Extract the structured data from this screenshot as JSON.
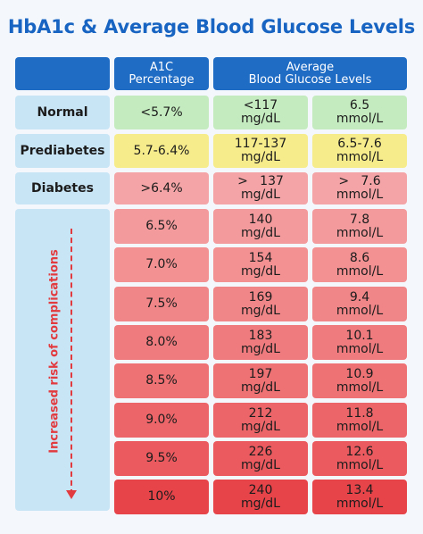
{
  "title": "HbA1c & Average Blood Glucose Levels",
  "headers": {
    "a1c_line1": "A1C",
    "a1c_line2": "Percentage",
    "avg_line1": "Average",
    "avg_line2": "Blood Glucose Levels"
  },
  "categories": [
    {
      "label": "Normal",
      "a1c": "<5.7%",
      "mgdl": "<117",
      "mgdl_unit": "mg/dL",
      "mmol": "6.5",
      "mmol_unit": "mmol/L"
    },
    {
      "label": "Prediabetes",
      "a1c": "5.7-6.4%",
      "mgdl": "117-137",
      "mgdl_unit": "mg/dL",
      "mmol": "6.5-7.6",
      "mmol_unit": "mmol/L"
    },
    {
      "label": "Diabetes",
      "a1c": ">6.4%",
      "mgdl": ">   137",
      "mgdl_unit": "mg/dL",
      "mmol": ">   7.6",
      "mmol_unit": "mmol/L"
    }
  ],
  "risk_label": "Increased risk of complications",
  "levels": [
    {
      "a1c": "6.5%",
      "mgdl": "140",
      "mgdl_unit": "mg/dL",
      "mmol": "7.8",
      "mmol_unit": "mmol/L"
    },
    {
      "a1c": "7.0%",
      "mgdl": "154",
      "mgdl_unit": "mg/dL",
      "mmol": "8.6",
      "mmol_unit": "mmol/L"
    },
    {
      "a1c": "7.5%",
      "mgdl": "169",
      "mgdl_unit": "mg/dL",
      "mmol": "9.4",
      "mmol_unit": "mmol/L"
    },
    {
      "a1c": "8.0%",
      "mgdl": "183",
      "mgdl_unit": "mg/dL",
      "mmol": "10.1",
      "mmol_unit": "mmol/L"
    },
    {
      "a1c": "8.5%",
      "mgdl": "197",
      "mgdl_unit": "mg/dL",
      "mmol": "10.9",
      "mmol_unit": "mmol/L"
    },
    {
      "a1c": "9.0%",
      "mgdl": "212",
      "mgdl_unit": "mg/dL",
      "mmol": "11.8",
      "mmol_unit": "mmol/L"
    },
    {
      "a1c": "9.5%",
      "mgdl": "226",
      "mgdl_unit": "mg/dL",
      "mmol": "12.6",
      "mmol_unit": "mmol/L"
    },
    {
      "a1c": "10%",
      "mgdl": "240",
      "mgdl_unit": "mg/dL",
      "mmol": "13.4",
      "mmol_unit": "mmol/L"
    }
  ],
  "colors": {
    "title": "#1764c2",
    "header": "#1f6cc5",
    "label_bg": "#c8e5f6",
    "normal": "#c4ebbf",
    "prediabetes": "#f7ec8b",
    "risk_arrow": "#e23b3f"
  }
}
